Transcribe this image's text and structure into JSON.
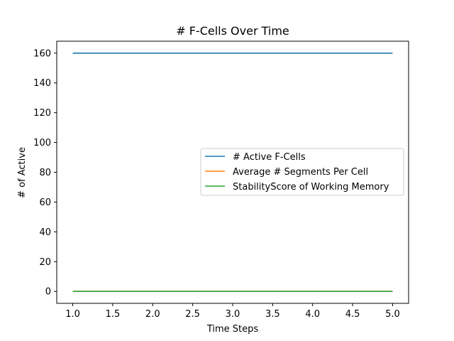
{
  "chart_data": {
    "type": "line",
    "title": "# F-Cells Over Time",
    "xlabel": "Time Steps",
    "ylabel": "# of Active",
    "xlim": [
      0.8,
      5.2
    ],
    "ylim": [
      -8,
      168
    ],
    "xticks": [
      1.0,
      1.5,
      2.0,
      2.5,
      3.0,
      3.5,
      4.0,
      4.5,
      5.0
    ],
    "xtick_labels": [
      "1.0",
      "1.5",
      "2.0",
      "2.5",
      "3.0",
      "3.5",
      "4.0",
      "4.5",
      "5.0"
    ],
    "yticks": [
      0,
      20,
      40,
      60,
      80,
      100,
      120,
      140,
      160
    ],
    "ytick_labels": [
      "0",
      "20",
      "40",
      "60",
      "80",
      "100",
      "120",
      "140",
      "160"
    ],
    "grid": false,
    "legend_position": "center-right",
    "x": [
      1,
      2,
      3,
      4,
      5
    ],
    "series": [
      {
        "name": "# Active F-Cells",
        "color": "#1f77b4",
        "values": [
          160,
          160,
          160,
          160,
          160
        ]
      },
      {
        "name": "Average # Segments Per Cell",
        "color": "#ff7f0e",
        "values": [
          0,
          0,
          0,
          0,
          0
        ]
      },
      {
        "name": "StabilityScore of Working Memory",
        "color": "#2ca02c",
        "values": [
          0,
          0,
          0,
          0,
          0
        ]
      }
    ]
  }
}
